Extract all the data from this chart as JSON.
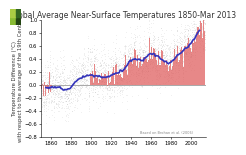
{
  "title": "Global Average Near-Surface Temperatures 1850-Mar 2013",
  "ylabel": "Temperature Difference (°C)\nwith respect to the average of the 19th Century",
  "xlabel": "",
  "xlim": [
    1850,
    2014
  ],
  "ylim": [
    -0.8,
    1.0
  ],
  "yticks": [
    -0.8,
    -0.6,
    -0.4,
    -0.2,
    0.0,
    0.2,
    0.4,
    0.6,
    0.8,
    1.0
  ],
  "xticks": [
    1860,
    1880,
    1900,
    1920,
    1940,
    1960,
    1980,
    2000
  ],
  "bar_color": "#e06060",
  "bar_alpha": 0.75,
  "scatter_color": "#aaaaaa",
  "scatter_alpha": 0.4,
  "line_color": "#3333bb",
  "line_width": 1.2,
  "background_color": "#ffffff",
  "annotation": "Based on Brohan et al. (2006)",
  "title_fontsize": 5.5,
  "label_fontsize": 3.8,
  "tick_fontsize": 3.8,
  "logo_color_1": "#aacc44",
  "logo_color_2": "#336622",
  "logo_color_3": "#88bb33",
  "logo_color_4": "#224411"
}
